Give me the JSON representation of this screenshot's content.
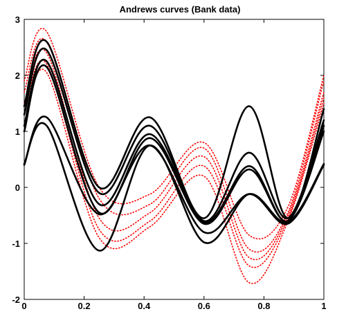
{
  "chart_data": {
    "type": "line",
    "title": "Andrews curves (Bank data)",
    "xlabel": "",
    "ylabel": "",
    "xlim": [
      0,
      1
    ],
    "ylim": [
      -2,
      3
    ],
    "x_ticks": [
      "0",
      "0.2",
      "0.4",
      "0.6",
      "0.8",
      "1"
    ],
    "y_ticks": [
      "3",
      "2",
      "1",
      "0",
      "-1",
      "-2"
    ],
    "grid": false,
    "legend": "none",
    "series_styles": {
      "black": {
        "color": "#000000",
        "dash": "solid",
        "width": 2.6
      },
      "red": {
        "color": "#ff0000",
        "dash": "dotted",
        "width": 1.6
      }
    },
    "x": [
      0,
      0.075,
      0.25,
      0.42,
      0.6,
      0.75,
      0.88,
      1
    ],
    "series": [
      {
        "style": "black",
        "values": [
          1.45,
          2.6,
          0.0,
          1.25,
          -0.55,
          1.45,
          -0.55,
          1.4
        ]
      },
      {
        "style": "black",
        "values": [
          1.3,
          2.45,
          -0.1,
          1.1,
          -0.6,
          0.62,
          -0.55,
          1.2
        ]
      },
      {
        "style": "black",
        "values": [
          1.1,
          2.25,
          -0.3,
          0.95,
          -0.62,
          0.38,
          -0.6,
          1.1
        ]
      },
      {
        "style": "black",
        "values": [
          1.0,
          2.15,
          -0.45,
          0.88,
          -0.65,
          0.32,
          -0.6,
          1.0
        ]
      },
      {
        "style": "black",
        "values": [
          0.4,
          1.25,
          -0.48,
          0.75,
          -0.8,
          -0.12,
          -0.65,
          0.4
        ]
      },
      {
        "style": "black",
        "values": [
          0.42,
          1.1,
          -1.13,
          0.75,
          -0.98,
          -0.12,
          -0.62,
          0.42
        ]
      },
      {
        "style": "red",
        "values": [
          1.9,
          2.78,
          0.0,
          -0.12,
          0.8,
          -0.85,
          -0.35,
          2.0
        ]
      },
      {
        "style": "red",
        "values": [
          1.7,
          2.6,
          -0.2,
          -0.3,
          0.7,
          -1.1,
          -0.45,
          1.9
        ]
      },
      {
        "style": "red",
        "values": [
          1.5,
          2.4,
          -0.55,
          -0.45,
          0.55,
          -1.25,
          -0.5,
          1.7
        ]
      },
      {
        "style": "red",
        "values": [
          1.3,
          2.2,
          -0.75,
          -0.6,
          0.38,
          -1.4,
          -0.55,
          1.6
        ]
      },
      {
        "style": "red",
        "values": [
          1.1,
          2.05,
          -0.9,
          -0.7,
          0.2,
          -1.7,
          -0.6,
          1.5
        ]
      }
    ]
  }
}
